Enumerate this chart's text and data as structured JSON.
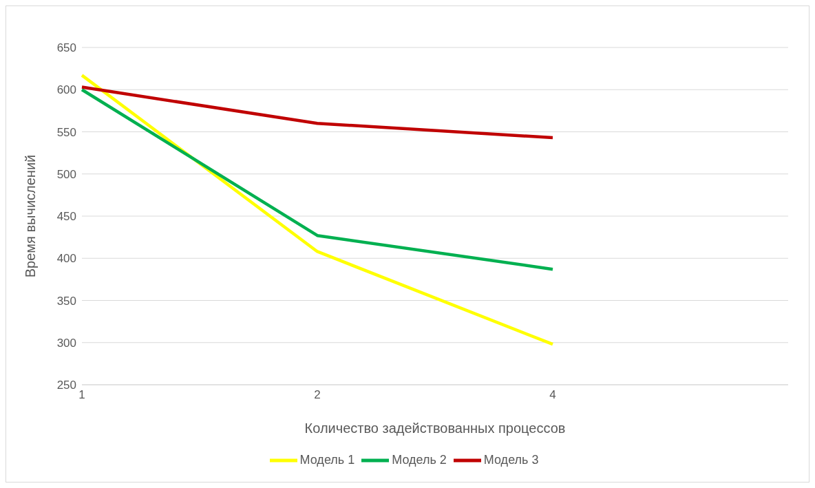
{
  "chart_data": {
    "type": "line",
    "xlabel": "Количество задействованных процессов",
    "ylabel": "Время вычислений",
    "categories": [
      "1",
      "2",
      "4",
      null
    ],
    "series": [
      {
        "name": "Модель 1",
        "color": "#ffff00",
        "values": [
          617,
          408,
          298,
          null
        ]
      },
      {
        "name": "Модель 2",
        "color": "#00b050",
        "values": [
          600,
          427,
          387,
          null
        ]
      },
      {
        "name": "Модель 3",
        "color": "#c00000",
        "values": [
          603,
          560,
          543,
          null
        ]
      }
    ],
    "ylim": [
      250,
      650
    ],
    "yticks": [
      250,
      300,
      350,
      400,
      450,
      500,
      550,
      600,
      650
    ],
    "grid": "y",
    "legend": "bottom",
    "marker": "none",
    "line_style": "solid"
  }
}
